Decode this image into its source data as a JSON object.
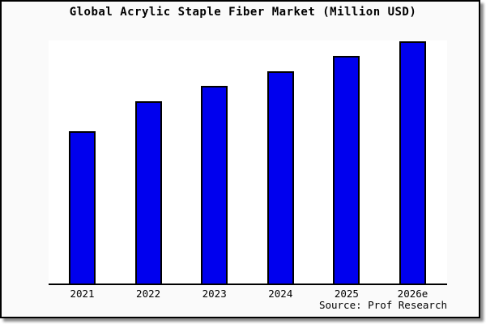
{
  "page": {
    "background_color": "#fafafa",
    "frame_border_color": "#000000",
    "frame_shadow_color": "#8a8a8a"
  },
  "chart_data": {
    "type": "bar",
    "title": "Global Acrylic Staple Fiber Market (Million USD)",
    "categories": [
      "2021",
      "2022",
      "2023",
      "2024",
      "2025",
      "2026e"
    ],
    "values": [
      188,
      225,
      244,
      262,
      281,
      299
    ],
    "xlabel": "",
    "ylabel": "",
    "ylim": [
      0,
      300
    ],
    "y_axis_visible": false,
    "grid": false,
    "legend": "none",
    "bar_color": "#0000ee",
    "bar_border_color": "#000000",
    "plot_background": "#ffffff",
    "note": "No y-axis or value labels shown; values are relative heights (pixels above baseline, plot height 300)"
  },
  "source": {
    "label": "Source: Prof Research"
  }
}
